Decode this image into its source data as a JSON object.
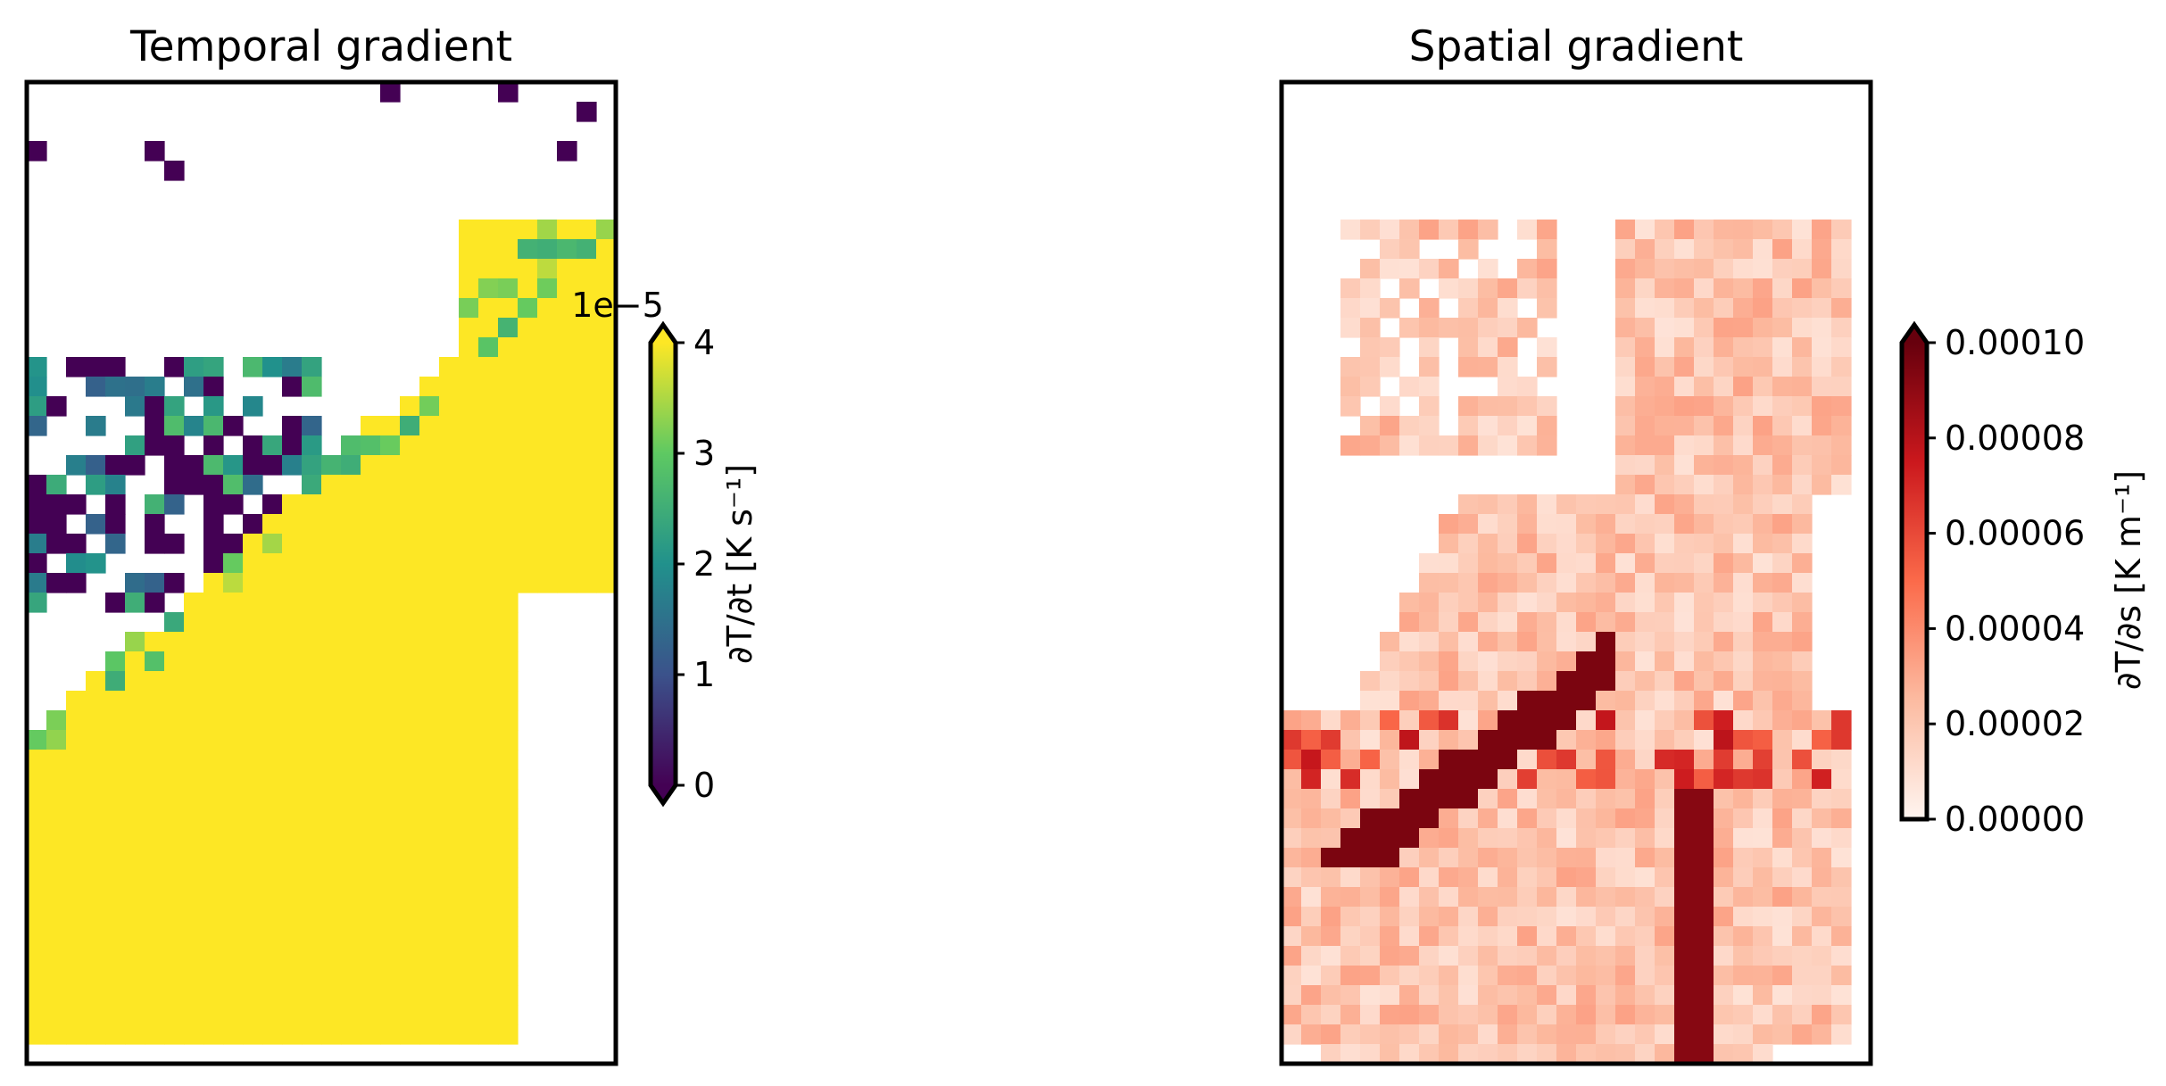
{
  "figure": {
    "panels": [
      {
        "title": "Temporal gradient",
        "colormap": "viridis",
        "extend": "both",
        "colorbar": {
          "label": "∂T/∂t [K s⁻¹]",
          "ticks": [
            "0",
            "1",
            "2",
            "3",
            "4"
          ],
          "offset_label": "1e−5"
        }
      },
      {
        "title": "Spatial gradient",
        "colormap": "Reds",
        "extend": "max",
        "colorbar": {
          "label": "∂T/∂s [K m⁻¹]",
          "ticks": [
            "0.00000",
            "0.00002",
            "0.00004",
            "0.00006",
            "0.00008",
            "0.00010"
          ],
          "offset_label": ""
        }
      }
    ]
  },
  "chart_data": [
    {
      "type": "heatmap",
      "title": "Temporal gradient",
      "colorbar_label": "∂T/∂t [K s⁻¹]",
      "value_scale": "1e-5",
      "vmin": 0,
      "vmax": 4,
      "extend": "both",
      "grid_cols": 30,
      "grid_rows": 50,
      "nodata": "white",
      "x_ticks": [],
      "y_ticks": [],
      "regions": [
        {
          "description": "saturated (>= 4e-5) plateau in lower-left and right-central band",
          "value": 4
        },
        {
          "description": "small patches near zero scattered in upper-left and center",
          "value": 0
        },
        {
          "description": "mid values (1-3e-5) along edges of saturated region",
          "value": 2
        }
      ]
    },
    {
      "type": "heatmap",
      "title": "Spatial gradient",
      "colorbar_label": "∂T/∂s [K m⁻¹]",
      "vmin": 0,
      "vmax": 0.0001,
      "extend": "max",
      "grid_cols": 30,
      "grid_rows": 50,
      "nodata": "white",
      "x_ticks": [],
      "y_ticks": [],
      "regions": [
        {
          "description": "background light values across valid area",
          "value": 2e-05
        },
        {
          "description": "high gradient diagonal streaks in lower half",
          "value": 0.0001
        }
      ]
    }
  ]
}
